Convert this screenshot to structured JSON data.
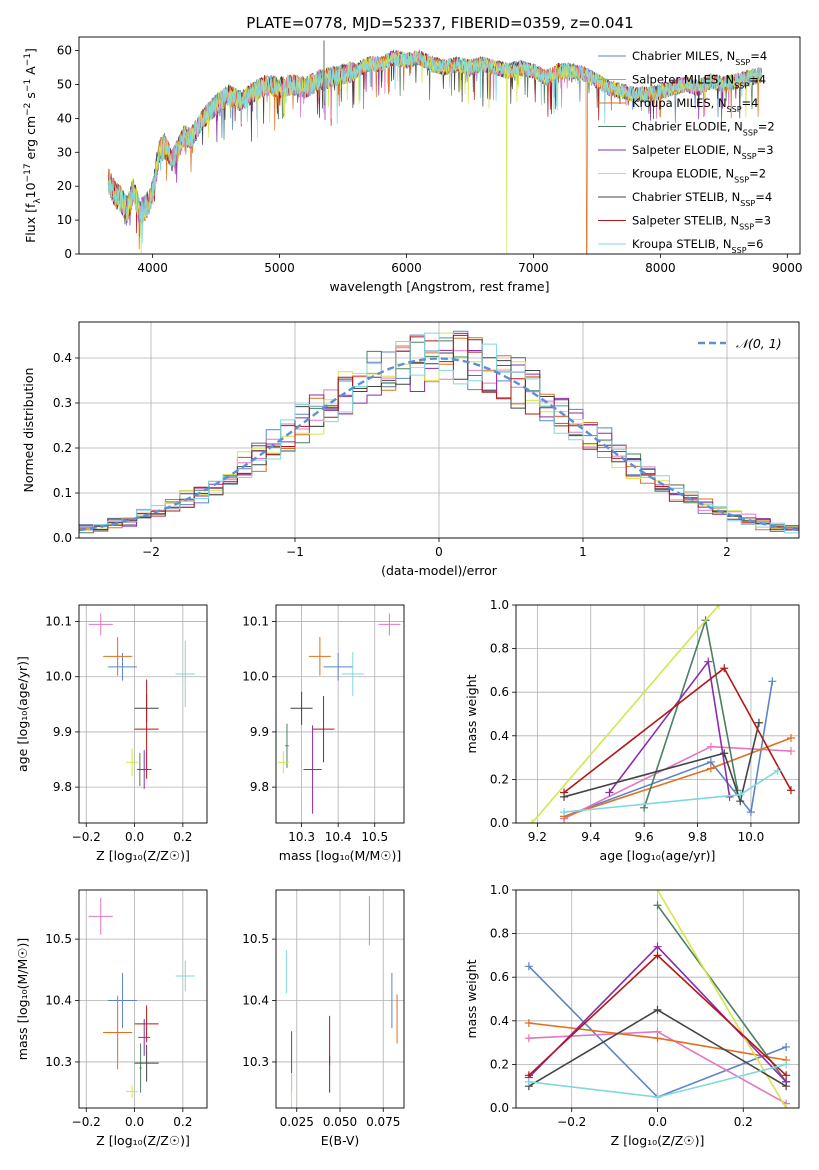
{
  "title": "PLATE=0778, MJD=52337, FIBERID=0359, z=0.041",
  "colors": [
    "#5b85c8",
    "#e377c2",
    "#e07020",
    "#4a8060",
    "#8e2ca8",
    "#d4e64a",
    "#444444",
    "#b01818",
    "#80d8dc"
  ],
  "chart_data": [
    {
      "type": "line",
      "id": "spectrum",
      "xlabel": "wavelength [Angstrom, rest frame]",
      "ylabel_parts": [
        "Flux [f",
        "λ",
        "10",
        "−17",
        " erg cm",
        "−2",
        " s",
        "−1",
        " A",
        "−1",
        "]"
      ],
      "xlim": [
        3420,
        9100
      ],
      "ylim": [
        0,
        64
      ],
      "xticks": [
        4000,
        5000,
        6000,
        7000,
        8000,
        9000
      ],
      "yticks": [
        0,
        10,
        20,
        30,
        40,
        50,
        60
      ],
      "grid": false,
      "legend_position": "top-right",
      "spectrum_x": [
        3650,
        3700,
        3750,
        3800,
        3850,
        3900,
        3950,
        4000,
        4050,
        4100,
        4150,
        4200,
        4250,
        4300,
        4350,
        4400,
        4450,
        4500,
        4600,
        4700,
        4800,
        4900,
        5000,
        5100,
        5200,
        5300,
        5400,
        5500,
        5600,
        5700,
        5800,
        5900,
        6000,
        6100,
        6200,
        6300,
        6400,
        6500,
        6600,
        6700,
        6800,
        6900,
        7000,
        7100,
        7200,
        7300,
        7400,
        7500,
        7600,
        7700,
        7800,
        7900,
        8000,
        8100,
        8200,
        8300,
        8400,
        8500,
        8600,
        8700,
        8800
      ],
      "spectrum_y": [
        22,
        18,
        16,
        13,
        19,
        12,
        14,
        18,
        30,
        32,
        28,
        31,
        35,
        34,
        37,
        40,
        42,
        44,
        47,
        45,
        48,
        50,
        49,
        50,
        49,
        51,
        52,
        53,
        54,
        56,
        56,
        58,
        57,
        58,
        56,
        55,
        56,
        55,
        56,
        55,
        54,
        55,
        54,
        52,
        54,
        54,
        53,
        51,
        49,
        48,
        47,
        47,
        48,
        49,
        50,
        49,
        51,
        50,
        51,
        52,
        53
      ],
      "dropouts": [
        {
          "x": 3910,
          "series": 5
        },
        {
          "x": 6790,
          "series": 5
        },
        {
          "x": 7420,
          "series": 2
        }
      ],
      "legend": [
        {
          "imf": "Chabrier",
          "lib": "MILES",
          "n": "4"
        },
        {
          "imf": "Salpeter",
          "lib": "MILES",
          "n": "4"
        },
        {
          "imf": "Kroupa",
          "lib": "MILES",
          "n": "4"
        },
        {
          "imf": "Chabrier",
          "lib": "ELODIE",
          "n": "2"
        },
        {
          "imf": "Salpeter",
          "lib": "ELODIE",
          "n": "3"
        },
        {
          "imf": "Kroupa",
          "lib": "ELODIE",
          "n": "2"
        },
        {
          "imf": "Chabrier",
          "lib": "STELIB",
          "n": "4"
        },
        {
          "imf": "Salpeter",
          "lib": "STELIB",
          "n": "3"
        },
        {
          "imf": "Kroupa",
          "lib": "STELIB",
          "n": "6"
        }
      ],
      "legend_sub": "SSP",
      "legend_prefix": "N"
    },
    {
      "type": "histogram",
      "id": "residuals",
      "xlabel": "(data-model)/error",
      "ylabel": "Normed distribution",
      "xlim": [
        -2.5,
        2.5
      ],
      "ylim": [
        0,
        0.48
      ],
      "xticks": [
        -2,
        -1,
        0,
        1,
        2
      ],
      "yticks": [
        0.0,
        0.1,
        0.2,
        0.3,
        0.4
      ],
      "grid": true,
      "bin_width": 0.1,
      "legend": [
        {
          "label": "𝒩(0, 1)"
        }
      ]
    },
    {
      "type": "scatter",
      "id": "age-vs-z",
      "xlabel": "Z [log₁₀(Z/Z☉)]",
      "ylabel": "age  [log₁₀(age/yr)]",
      "xlim": [
        -0.23,
        0.3
      ],
      "ylim": [
        9.735,
        10.13
      ],
      "xticks": [
        -0.2,
        0.0,
        0.2
      ],
      "yticks": [
        9.8,
        9.9,
        10.0,
        10.1
      ],
      "grid": true,
      "points": [
        {
          "x": -0.05,
          "y": 10.018,
          "xerr": 0.06,
          "yerr": 0.025,
          "s": 0
        },
        {
          "x": -0.14,
          "y": 10.095,
          "xerr": 0.05,
          "yerr": 0.02,
          "s": 1
        },
        {
          "x": -0.07,
          "y": 10.037,
          "xerr": 0.06,
          "yerr": 0.035,
          "s": 2
        },
        {
          "x": 0.022,
          "y": 9.832,
          "xerr": 0.005,
          "yerr": 0.03,
          "s": 3
        },
        {
          "x": 0.04,
          "y": 9.832,
          "xerr": 0.03,
          "yerr": 0.035,
          "s": 4
        },
        {
          "x": -0.01,
          "y": 9.845,
          "xerr": 0.025,
          "yerr": 0.025,
          "s": 5
        },
        {
          "x": 0.05,
          "y": 9.943,
          "xerr": 0.05,
          "yerr": 0.025,
          "s": 6
        },
        {
          "x": 0.05,
          "y": 9.905,
          "xerr": 0.05,
          "yerr": 0.09,
          "s": 7
        },
        {
          "x": 0.21,
          "y": 10.005,
          "xerr": 0.04,
          "yerr": 0.06,
          "s": 8
        }
      ]
    },
    {
      "type": "scatter",
      "id": "age-vs-mass",
      "xlabel": "mass [log₁₀(M/M☉)]",
      "ylabel": "",
      "xlim": [
        10.23,
        10.58
      ],
      "ylim": [
        9.735,
        10.13
      ],
      "xticks": [
        10.3,
        10.4,
        10.5
      ],
      "yticks": [
        9.8,
        9.9,
        10.0,
        10.1
      ],
      "grid": true,
      "points": [
        {
          "x": 10.4,
          "y": 10.018,
          "xerr": 0.04,
          "yerr": 0.025,
          "s": 0
        },
        {
          "x": 10.54,
          "y": 10.095,
          "xerr": 0.03,
          "yerr": 0.02,
          "s": 1
        },
        {
          "x": 10.35,
          "y": 10.037,
          "xerr": 0.03,
          "yerr": 0.035,
          "s": 2
        },
        {
          "x": 10.26,
          "y": 9.875,
          "xerr": 0.005,
          "yerr": 0.04,
          "s": 3
        },
        {
          "x": 10.33,
          "y": 9.832,
          "xerr": 0.025,
          "yerr": 0.08,
          "s": 4
        },
        {
          "x": 10.25,
          "y": 9.845,
          "xerr": 0.015,
          "yerr": 0.02,
          "s": 5
        },
        {
          "x": 10.3,
          "y": 9.943,
          "xerr": 0.03,
          "yerr": 0.03,
          "s": 6
        },
        {
          "x": 10.36,
          "y": 9.905,
          "xerr": 0.03,
          "yerr": 0.06,
          "s": 7
        },
        {
          "x": 10.44,
          "y": 10.005,
          "xerr": 0.03,
          "yerr": 0.04,
          "s": 8
        }
      ]
    },
    {
      "type": "line",
      "id": "weight-vs-age",
      "xlabel": "age  [log₁₀(age/yr)]",
      "ylabel": "mass weight",
      "xlim": [
        9.12,
        10.18
      ],
      "ylim": [
        0,
        1.0
      ],
      "xticks": [
        9.2,
        9.4,
        9.6,
        9.8,
        10.0
      ],
      "yticks": [
        0.0,
        0.2,
        0.4,
        0.6,
        0.8,
        1.0
      ],
      "grid": true,
      "series": [
        {
          "s": 0,
          "x": [
            9.3,
            9.85,
            10.0,
            10.08
          ],
          "y": [
            0.03,
            0.28,
            0.05,
            0.65
          ]
        },
        {
          "s": 1,
          "x": [
            9.3,
            9.85,
            10.15
          ],
          "y": [
            0.02,
            0.35,
            0.33
          ]
        },
        {
          "s": 2,
          "x": [
            9.3,
            9.85,
            10.15
          ],
          "y": [
            0.03,
            0.25,
            0.39
          ]
        },
        {
          "s": 3,
          "x": [
            9.6,
            9.83,
            9.95
          ],
          "y": [
            0.07,
            0.93,
            0.15
          ]
        },
        {
          "s": 4,
          "x": [
            9.47,
            9.84,
            9.92
          ],
          "y": [
            0.14,
            0.74,
            0.12
          ]
        },
        {
          "s": 5,
          "x": [
            9.18,
            9.88
          ],
          "y": [
            0.0,
            1.0
          ]
        },
        {
          "s": 6,
          "x": [
            9.3,
            9.9,
            9.96,
            10.03
          ],
          "y": [
            0.12,
            0.32,
            0.1,
            0.46
          ]
        },
        {
          "s": 7,
          "x": [
            9.3,
            9.9,
            10.15
          ],
          "y": [
            0.14,
            0.71,
            0.15
          ]
        },
        {
          "s": 8,
          "x": [
            9.3,
            9.96,
            10.1
          ],
          "y": [
            0.05,
            0.13,
            0.24
          ]
        }
      ]
    },
    {
      "type": "scatter",
      "id": "mass-vs-z",
      "xlabel": "Z [log₁₀(Z/Z☉)]",
      "ylabel": "mass [log₁₀(M/M☉)]",
      "xlim": [
        -0.23,
        0.3
      ],
      "ylim": [
        10.225,
        10.58
      ],
      "xticks": [
        -0.2,
        0.0,
        0.2
      ],
      "yticks": [
        10.3,
        10.4,
        10.5
      ],
      "grid": true,
      "points": [
        {
          "x": -0.05,
          "y": 10.4,
          "xerr": 0.06,
          "yerr": 0.045,
          "s": 0
        },
        {
          "x": -0.14,
          "y": 10.537,
          "xerr": 0.05,
          "yerr": 0.03,
          "s": 1
        },
        {
          "x": -0.07,
          "y": 10.348,
          "xerr": 0.06,
          "yerr": 0.06,
          "s": 2
        },
        {
          "x": 0.025,
          "y": 10.29,
          "xerr": 0.005,
          "yerr": 0.04,
          "s": 3
        },
        {
          "x": 0.04,
          "y": 10.34,
          "xerr": 0.025,
          "yerr": 0.03,
          "s": 4
        },
        {
          "x": -0.01,
          "y": 10.252,
          "xerr": 0.025,
          "yerr": 0.01,
          "s": 5
        },
        {
          "x": 0.05,
          "y": 10.298,
          "xerr": 0.05,
          "yerr": 0.03,
          "s": 6
        },
        {
          "x": 0.05,
          "y": 10.362,
          "xerr": 0.05,
          "yerr": 0.03,
          "s": 7
        },
        {
          "x": 0.21,
          "y": 10.44,
          "xerr": 0.04,
          "yerr": 0.025,
          "s": 8
        }
      ]
    },
    {
      "type": "scatter",
      "id": "mass-vs-ebv",
      "xlabel": "E(B-V)",
      "ylabel": "",
      "xlim": [
        0.013,
        0.087
      ],
      "ylim": [
        10.225,
        10.58
      ],
      "xticks": [
        0.025,
        0.05,
        0.075
      ],
      "xticklabels": [
        "0.025",
        "0.050",
        "0.075"
      ],
      "yticks": [
        10.3,
        10.4,
        10.5
      ],
      "grid": true,
      "points": [
        {
          "x": 0.08,
          "y": 10.4,
          "yerr": 0.045,
          "s": 0
        },
        {
          "x": 0.067,
          "y": 10.53,
          "yerr": 0.04,
          "s": 1
        },
        {
          "x": 0.083,
          "y": 10.37,
          "yerr": 0.04,
          "s": 2
        },
        {
          "x": 0.019,
          "y": 10.447,
          "yerr": 0.035,
          "s": 8
        },
        {
          "x": 0.022,
          "y": 10.3,
          "yerr": 0.05,
          "s": 4
        },
        {
          "x": 0.022,
          "y": 10.252,
          "yerr": 0.03,
          "s": 5
        },
        {
          "x": 0.044,
          "y": 10.28,
          "yerr": 0.03,
          "s": 6
        },
        {
          "x": 0.044,
          "y": 10.335,
          "yerr": 0.04,
          "s": 7
        }
      ]
    },
    {
      "type": "line",
      "id": "weight-vs-z",
      "xlabel": "Z [log₁₀(Z/Z☉)]",
      "ylabel": "mass weight",
      "xlim": [
        -0.33,
        0.33
      ],
      "ylim": [
        0,
        1.0
      ],
      "xticks": [
        -0.2,
        0.0,
        0.2
      ],
      "yticks": [
        0.0,
        0.2,
        0.4,
        0.6,
        0.8,
        1.0
      ],
      "grid": true,
      "series": [
        {
          "s": 0,
          "x": [
            -0.3,
            0.0,
            0.3
          ],
          "y": [
            0.65,
            0.05,
            0.28
          ]
        },
        {
          "s": 1,
          "x": [
            -0.3,
            0.0,
            0.3
          ],
          "y": [
            0.32,
            0.35,
            0.02
          ]
        },
        {
          "s": 2,
          "x": [
            -0.3,
            0.0,
            0.3
          ],
          "y": [
            0.39,
            0.32,
            0.22
          ]
        },
        {
          "s": 3,
          "x": [
            0.0,
            0.3
          ],
          "y": [
            0.93,
            0.12
          ]
        },
        {
          "s": 4,
          "x": [
            -0.3,
            0.0,
            0.3
          ],
          "y": [
            0.14,
            0.74,
            0.12
          ]
        },
        {
          "s": 5,
          "x": [
            0.0,
            0.3
          ],
          "y": [
            1.0,
            0.0
          ]
        },
        {
          "s": 6,
          "x": [
            -0.3,
            0.0,
            0.3
          ],
          "y": [
            0.1,
            0.45,
            0.1
          ]
        },
        {
          "s": 7,
          "x": [
            -0.3,
            0.0,
            0.3
          ],
          "y": [
            0.15,
            0.7,
            0.15
          ]
        },
        {
          "s": 8,
          "x": [
            -0.3,
            0.0,
            0.3
          ],
          "y": [
            0.12,
            0.05,
            0.2
          ]
        }
      ]
    }
  ]
}
